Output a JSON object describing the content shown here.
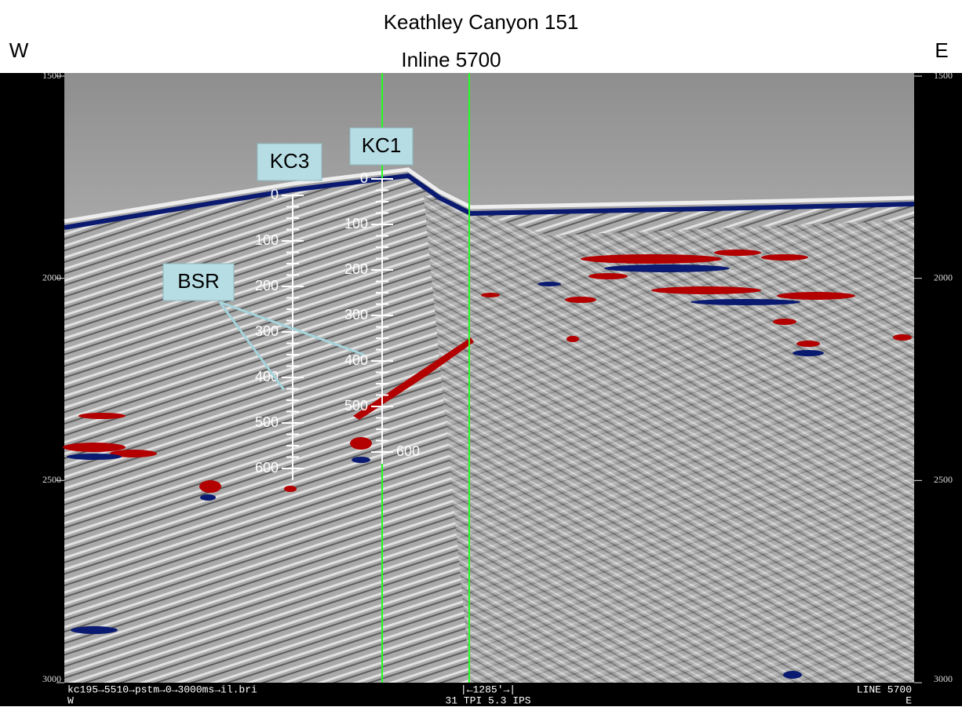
{
  "title": "Keathley Canyon 151",
  "subtitle": "Inline 5700",
  "west": "W",
  "east": "E",
  "time_axis": {
    "ticks": [
      1500,
      2000,
      2500,
      3000
    ]
  },
  "wells": [
    {
      "name": "KC3",
      "depth_ticks": [
        0,
        100,
        200,
        300,
        400,
        500,
        600
      ]
    },
    {
      "name": "KC1",
      "depth_ticks": [
        0,
        100,
        200,
        300,
        400,
        500,
        600
      ]
    }
  ],
  "annotation": "BSR",
  "footer": {
    "left": "kc195→5510→pstm→0→3000ms→il.bri",
    "left2": "W",
    "center": "|←1285'→|",
    "center2": "31 TPI 5.3 IPS",
    "right": "LINE 5700",
    "right2": "E"
  }
}
